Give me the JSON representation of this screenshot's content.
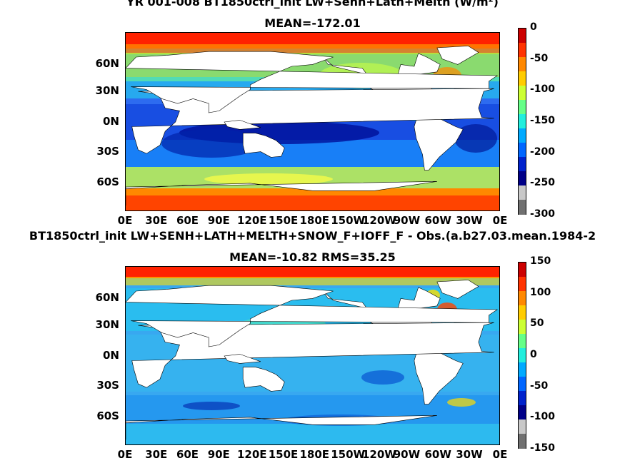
{
  "top": {
    "title": "YR 001-008 BT1850ctrl_init LW+Senh+Lath+Melth (W/m²)",
    "mean": "MEAN=-172.01",
    "colorbar_ticks": [
      "0",
      "-50",
      "-100",
      "-150",
      "-200",
      "-250",
      "-300"
    ]
  },
  "bottom": {
    "title": "BT1850ctrl_init LW+SENH+LATH+MELTH+SNOW_F+IOFF_F - Obs.(a.b27.03.mean.1984-2",
    "mean": "MEAN=-10.82 RMS=35.25",
    "colorbar_ticks": [
      "150",
      "100",
      "50",
      "0",
      "-50",
      "-100",
      "-150"
    ]
  },
  "axes": {
    "lon_labels": [
      "0E",
      "30E",
      "60E",
      "90E",
      "120E",
      "150E",
      "180E",
      "150W",
      "120W",
      "90W",
      "60W",
      "30W",
      "0E"
    ],
    "lat_labels": [
      "60N",
      "30N",
      "0N",
      "30S",
      "60S"
    ]
  },
  "colors": {
    "top_ocean": "#2d6bf0",
    "bottom_ocean": "#38a8f0",
    "land": "#ffffff",
    "jet": [
      "#cc0000",
      "#ff3300",
      "#ff8800",
      "#ffcc00",
      "#ccff33",
      "#66ff88",
      "#22eedd",
      "#00aaff",
      "#0066ff",
      "#0022cc",
      "#000088",
      "#c8c8c8",
      "#707070"
    ]
  }
}
